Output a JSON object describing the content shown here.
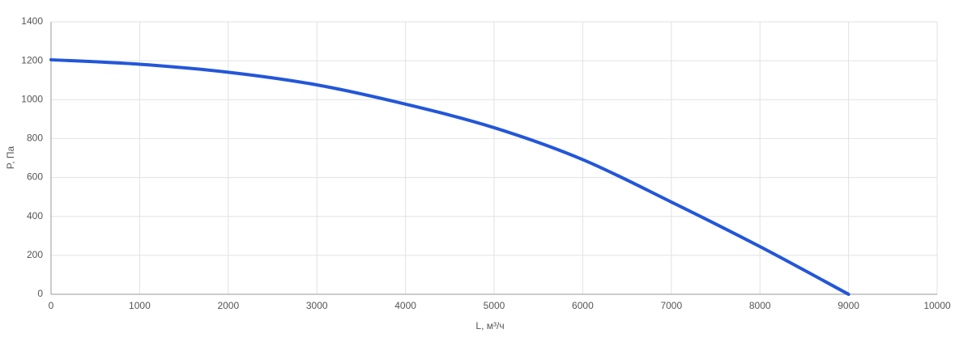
{
  "chart_data": {
    "type": "line",
    "x_label": "L, м³/ч",
    "y_label": "P, Па",
    "x": [
      0,
      1000,
      2000,
      3000,
      4000,
      5000,
      6000,
      7000,
      8000,
      9000
    ],
    "series": [
      {
        "name": "P",
        "color": "#2356d9",
        "values": [
          1205,
          1182,
          1141,
          1076,
          977,
          856,
          692,
          474,
          245,
          0
        ]
      }
    ],
    "xlim": [
      0,
      10000
    ],
    "xticks": [
      0,
      1000,
      2000,
      3000,
      4000,
      5000,
      6000,
      7000,
      8000,
      9000,
      10000
    ],
    "ylim": [
      0,
      1400
    ],
    "yticks": [
      0,
      200,
      400,
      600,
      800,
      1000,
      1200,
      1400
    ],
    "grid": true
  }
}
